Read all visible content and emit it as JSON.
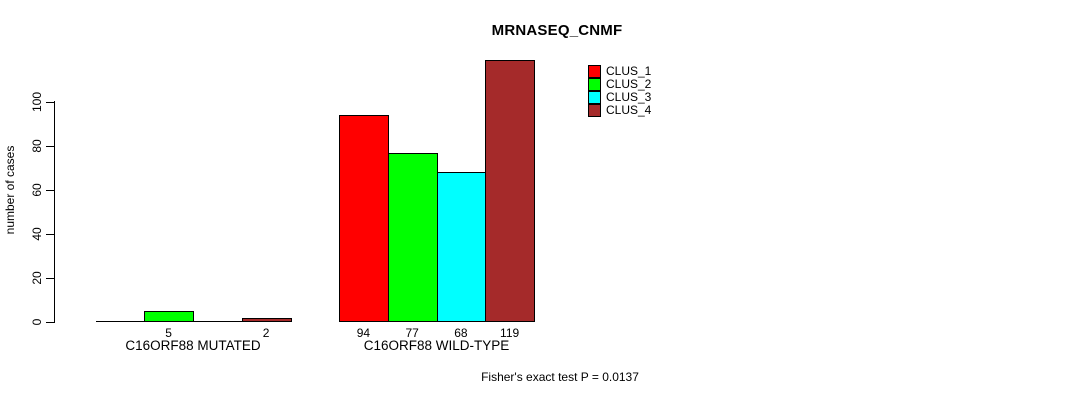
{
  "chart_data": {
    "type": "bar",
    "title": "MRNASEQ_CNMF",
    "ylabel": "number of cases",
    "xlabel": "",
    "ylim": [
      0,
      120
    ],
    "yticks": [
      0,
      20,
      40,
      60,
      80,
      100
    ],
    "grid": false,
    "legend_position": "top-right",
    "bar_border_color": "#000000",
    "background_color": "#ffffff",
    "series": [
      {
        "name": "CLUS_1",
        "color": "#FF0000"
      },
      {
        "name": "CLUS_2",
        "color": "#00FF00"
      },
      {
        "name": "CLUS_3",
        "color": "#00FFFF"
      },
      {
        "name": "CLUS_4",
        "color": "#A52A2A"
      }
    ],
    "groups": [
      {
        "label": "C16ORF88 MUTATED",
        "values": [
          0,
          5,
          0,
          2
        ]
      },
      {
        "label": "C16ORF88 WILD-TYPE",
        "values": [
          94,
          77,
          68,
          119
        ]
      }
    ],
    "visible_value_labels": [
      "5",
      "2",
      "94",
      "77",
      "68",
      "119"
    ],
    "annotation": "Fisher's exact test P = 0.0137"
  }
}
